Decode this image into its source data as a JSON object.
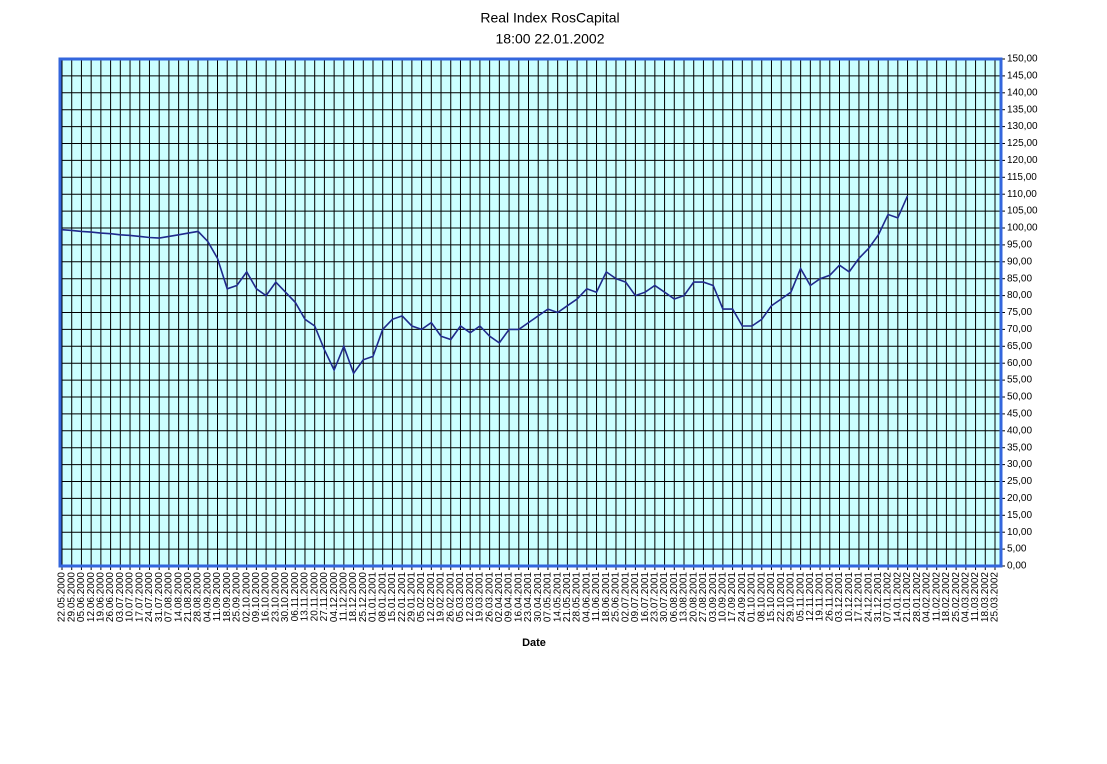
{
  "chart_data": {
    "type": "line",
    "title": "Real Index RosCapital",
    "subtitle": "18:00 22.01.2002",
    "x_label": "Date",
    "categories": [
      "22.05.2000",
      "29.05.2000",
      "05.06.2000",
      "12.06.2000",
      "19.06.2000",
      "26.06.2000",
      "03.07.2000",
      "10.07.2000",
      "17.07.2000",
      "24.07.2000",
      "31.07.2000",
      "07.08.2000",
      "14.08.2000",
      "21.08.2000",
      "28.08.2000",
      "04.09.2000",
      "11.09.2000",
      "18.09.2000",
      "25.09.2000",
      "02.10.2000",
      "09.10.2000",
      "16.10.2000",
      "23.10.2000",
      "30.10.2000",
      "06.11.2000",
      "13.11.2000",
      "20.11.2000",
      "27.11.2000",
      "04.12.2000",
      "11.12.2000",
      "18.12.2000",
      "25.12.2000",
      "01.01.2001",
      "08.01.2001",
      "15.01.2001",
      "22.01.2001",
      "29.01.2001",
      "05.02.2001",
      "12.02.2001",
      "19.02.2001",
      "26.02.2001",
      "05.03.2001",
      "12.03.2001",
      "19.03.2001",
      "26.03.2001",
      "02.04.2001",
      "09.04.2001",
      "16.04.2001",
      "23.04.2001",
      "30.04.2001",
      "07.05.2001",
      "14.05.2001",
      "21.05.2001",
      "28.05.2001",
      "04.06.2001",
      "11.06.2001",
      "18.06.2001",
      "25.06.2001",
      "02.07.2001",
      "09.07.2001",
      "16.07.2001",
      "23.07.2001",
      "30.07.2001",
      "06.08.2001",
      "13.08.2001",
      "20.08.2001",
      "27.08.2001",
      "03.09.2001",
      "10.09.2001",
      "17.09.2001",
      "24.09.2001",
      "01.10.2001",
      "08.10.2001",
      "15.10.2001",
      "22.10.2001",
      "29.10.2001",
      "05.11.2001",
      "12.11.2001",
      "19.11.2001",
      "26.11.2001",
      "03.12.2001",
      "10.12.2001",
      "17.12.2001",
      "24.12.2001",
      "31.12.2001",
      "07.01.2002",
      "14.01.2002",
      "21.01.2002",
      "28.01.2002",
      "04.02.2002",
      "11.02.2002",
      "18.02.2002",
      "25.02.2002",
      "04.03.2002",
      "11.03.2002",
      "18.03.2002",
      "25.03.2002"
    ],
    "series": [
      {
        "name": "Real Index RosCapital",
        "color": "#1f2a8c",
        "values": [
          99.5,
          99.3,
          99.0,
          98.8,
          98.5,
          98.3,
          98.0,
          97.8,
          97.5,
          97.2,
          97.0,
          97.5,
          98.0,
          98.5,
          99.0,
          96,
          91,
          82,
          83,
          87,
          82,
          80,
          84,
          81,
          78,
          73,
          71,
          64,
          58,
          65,
          57,
          61,
          62,
          70,
          73,
          74,
          71,
          70,
          72,
          68,
          67,
          71,
          69,
          71,
          68,
          66,
          70,
          70,
          72,
          74,
          76,
          75,
          77,
          79,
          82,
          81,
          87,
          85,
          84,
          80,
          81,
          83,
          81,
          79,
          80,
          84,
          84,
          83,
          76,
          76,
          71,
          71,
          73,
          77,
          79,
          81,
          88,
          83,
          85,
          86,
          89,
          87,
          91,
          94,
          98,
          104,
          103,
          109.5,
          null,
          null,
          null,
          null,
          null,
          null,
          null,
          null,
          null
        ]
      }
    ],
    "ylim": [
      0,
      150
    ],
    "yticks": [
      {
        "value": 0,
        "label": "0,00"
      },
      {
        "value": 5,
        "label": "5,00"
      },
      {
        "value": 10,
        "label": "10,00"
      },
      {
        "value": 15,
        "label": "15,00"
      },
      {
        "value": 20,
        "label": "20,00"
      },
      {
        "value": 25,
        "label": "25,00"
      },
      {
        "value": 30,
        "label": "30,00"
      },
      {
        "value": 35,
        "label": "35,00"
      },
      {
        "value": 40,
        "label": "40,00"
      },
      {
        "value": 45,
        "label": "45,00"
      },
      {
        "value": 50,
        "label": "50,00"
      },
      {
        "value": 55,
        "label": "55,00"
      },
      {
        "value": 60,
        "label": "60,00"
      },
      {
        "value": 65,
        "label": "65,00"
      },
      {
        "value": 70,
        "label": "70,00"
      },
      {
        "value": 75,
        "label": "75,00"
      },
      {
        "value": 80,
        "label": "80,00"
      },
      {
        "value": 85,
        "label": "85,00"
      },
      {
        "value": 90,
        "label": "90,00"
      },
      {
        "value": 95,
        "label": "95,00"
      },
      {
        "value": 100,
        "label": "100,00"
      },
      {
        "value": 105,
        "label": "105,00"
      },
      {
        "value": 110,
        "label": "110,00"
      },
      {
        "value": 115,
        "label": "115,00"
      },
      {
        "value": 120,
        "label": "120,00"
      },
      {
        "value": 125,
        "label": "125,00"
      },
      {
        "value": 130,
        "label": "130,00"
      },
      {
        "value": 135,
        "label": "135,00"
      },
      {
        "value": 140,
        "label": "140,00"
      },
      {
        "value": 145,
        "label": "145,00"
      },
      {
        "value": 150,
        "label": "150,00"
      }
    ],
    "grid": true,
    "plot_background": "#ccffff",
    "border_color": "#3366dd"
  }
}
